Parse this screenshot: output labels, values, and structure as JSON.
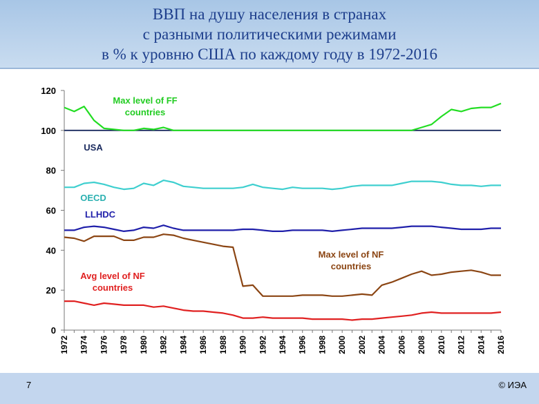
{
  "slide": {
    "title_lines": [
      "ВВП на душу населения в странах",
      "с разными политическими режимами",
      "в % к уровню США по каждому году в 1972-2016"
    ],
    "page_number": "7",
    "copyright": "© ИЭА",
    "colors": {
      "title_band": "#b7d0ec",
      "title_text": "#1d3e8c",
      "footer": "#c3d6ee"
    }
  },
  "chart_data": {
    "type": "line",
    "title": "",
    "xlabel": "",
    "ylabel": "",
    "ylim": [
      0,
      120
    ],
    "yticks": [
      "0",
      "20",
      "40",
      "60",
      "80",
      "100",
      "120"
    ],
    "grid": false,
    "x": [
      1972,
      1973,
      1974,
      1975,
      1976,
      1977,
      1978,
      1979,
      1980,
      1981,
      1982,
      1983,
      1984,
      1985,
      1986,
      1987,
      1988,
      1989,
      1990,
      1991,
      1992,
      1993,
      1994,
      1995,
      1996,
      1997,
      1998,
      1999,
      2000,
      2001,
      2002,
      2003,
      2004,
      2005,
      2006,
      2007,
      2008,
      2009,
      2010,
      2011,
      2012,
      2013,
      2014,
      2015,
      2016
    ],
    "x_tick_labels": [
      "1972",
      "1974",
      "1976",
      "1978",
      "1980",
      "1982",
      "1984",
      "1986",
      "1988",
      "1990",
      "1992",
      "1994",
      "1996",
      "1998",
      "2000",
      "2002",
      "2004",
      "2006",
      "2008",
      "2010",
      "2012",
      "2014",
      "2016"
    ],
    "series": [
      {
        "key": "ff",
        "color": "#22dd22",
        "values": [
          111.5,
          109.5,
          112,
          105,
          101,
          100.5,
          100,
          100,
          101,
          100.5,
          101.5,
          100,
          100,
          100,
          100,
          100,
          100,
          100,
          100,
          100,
          100,
          100,
          100,
          100,
          100,
          100,
          100,
          100,
          100,
          100,
          100,
          100,
          100,
          100,
          100,
          100,
          101.5,
          103,
          107,
          110.5,
          109.5,
          111,
          111.5,
          111.5,
          113.5
        ]
      },
      {
        "key": "usa",
        "color": "#1a2a5e",
        "values": [
          100,
          100,
          100,
          100,
          100,
          100,
          100,
          100,
          100,
          100,
          100,
          100,
          100,
          100,
          100,
          100,
          100,
          100,
          100,
          100,
          100,
          100,
          100,
          100,
          100,
          100,
          100,
          100,
          100,
          100,
          100,
          100,
          100,
          100,
          100,
          100,
          100,
          100,
          100,
          100,
          100,
          100,
          100,
          100,
          100
        ]
      },
      {
        "key": "oecd",
        "color": "#3ecfcf",
        "values": [
          71.5,
          71.5,
          73.5,
          74,
          73,
          71.5,
          70.5,
          71,
          73.5,
          72.5,
          75,
          74,
          72,
          71.5,
          71,
          71,
          71,
          71,
          71.5,
          73,
          71.5,
          71,
          70.5,
          71.5,
          71,
          71,
          71,
          70.5,
          71,
          72,
          72.5,
          72.5,
          72.5,
          72.5,
          73.5,
          74.5,
          74.5,
          74.5,
          74,
          73,
          72.5,
          72.5,
          72,
          72.5,
          72.5
        ]
      },
      {
        "key": "llhdc",
        "color": "#1f1faa",
        "values": [
          50,
          50,
          51.5,
          52,
          51.5,
          50.5,
          49.5,
          50,
          51.5,
          51,
          52.5,
          51,
          50,
          50,
          50,
          50,
          50,
          50,
          50.5,
          50.5,
          50,
          49.5,
          49.5,
          50,
          50,
          50,
          50,
          49.5,
          50,
          50.5,
          51,
          51,
          51,
          51,
          51.5,
          52,
          52,
          52,
          51.5,
          51,
          50.5,
          50.5,
          50.5,
          51,
          51
        ]
      },
      {
        "key": "nf_max",
        "color": "#8b4513",
        "values": [
          46.5,
          46,
          44.5,
          47,
          47,
          47,
          45,
          45,
          46.5,
          46.5,
          48,
          47.5,
          46,
          45,
          44,
          43,
          42,
          41.5,
          22,
          22.5,
          17,
          17,
          17,
          17,
          17.5,
          17.5,
          17.5,
          17,
          17,
          17.5,
          18,
          17.5,
          22.5,
          24,
          26,
          28,
          29.5,
          27.5,
          28,
          29,
          29.5,
          30,
          29,
          27.5,
          27.5
        ]
      },
      {
        "key": "nf_avg",
        "color": "#e02020",
        "values": [
          14.5,
          14.5,
          13.5,
          12.5,
          13.5,
          13,
          12.5,
          12.5,
          12.5,
          11.5,
          12,
          11,
          10,
          9.5,
          9.5,
          9,
          8.5,
          7.5,
          6,
          6,
          6.5,
          6,
          6,
          6,
          6,
          5.5,
          5.5,
          5.5,
          5.5,
          5,
          5.5,
          5.5,
          6,
          6.5,
          7,
          7.5,
          8.5,
          9,
          8.5,
          8.5,
          8.5,
          8.5,
          8.5,
          8.5,
          9
        ]
      }
    ],
    "annotations": [
      {
        "key": "ff",
        "lines": [
          "Max level of FF",
          "countries"
        ],
        "color": "#22cc22"
      },
      {
        "key": "usa",
        "lines": [
          "USA"
        ],
        "color": "#1a2a5e"
      },
      {
        "key": "oecd",
        "lines": [
          "OECD"
        ],
        "color": "#2ab0b0"
      },
      {
        "key": "llhdc",
        "lines": [
          "LLHDC"
        ],
        "color": "#1f1faa"
      },
      {
        "key": "nf_max",
        "lines": [
          "Max level of NF",
          "countries"
        ],
        "color": "#8b4513"
      },
      {
        "key": "nf_avg",
        "lines": [
          "Avg level of NF",
          "countries"
        ],
        "color": "#e02020"
      }
    ]
  }
}
